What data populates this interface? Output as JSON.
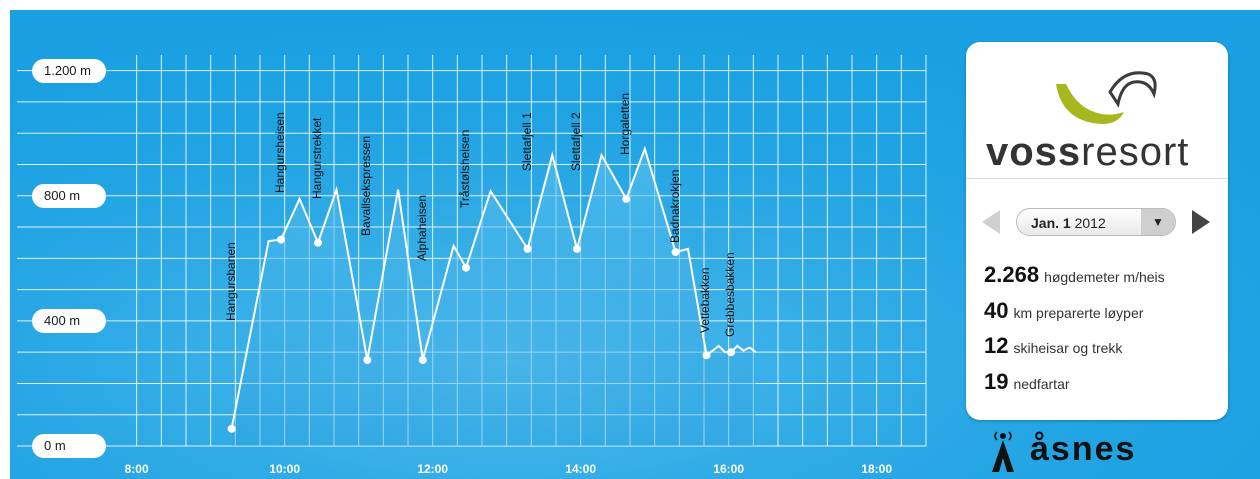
{
  "chart_data": {
    "type": "line",
    "title": "",
    "xlabel": "",
    "ylabel": "",
    "x_ticks": [
      "8:00",
      "10:00",
      "12:00",
      "14:00",
      "16:00",
      "18:00"
    ],
    "x_range": [
      "7:40",
      "18:40"
    ],
    "y_ticks": [
      "0 m",
      "400 m",
      "800 m",
      "1.200 m"
    ],
    "ylim": [
      0,
      1250
    ],
    "grid": true,
    "line_color": "#ffffff",
    "fill_color": "#4cb8ec",
    "profile": [
      {
        "t": "9:17",
        "elev": 55
      },
      {
        "t": "9:47",
        "elev": 655
      },
      {
        "t": "9:57",
        "elev": 660
      },
      {
        "t": "10:12",
        "elev": 790
      },
      {
        "t": "10:27",
        "elev": 650
      },
      {
        "t": "10:42",
        "elev": 820
      },
      {
        "t": "11:07",
        "elev": 275
      },
      {
        "t": "11:32",
        "elev": 820
      },
      {
        "t": "11:52",
        "elev": 275
      },
      {
        "t": "12:17",
        "elev": 640
      },
      {
        "t": "12:27",
        "elev": 570
      },
      {
        "t": "12:47",
        "elev": 815
      },
      {
        "t": "13:17",
        "elev": 630
      },
      {
        "t": "13:37",
        "elev": 930
      },
      {
        "t": "13:57",
        "elev": 630
      },
      {
        "t": "14:17",
        "elev": 930
      },
      {
        "t": "14:37",
        "elev": 790
      },
      {
        "t": "14:52",
        "elev": 950
      },
      {
        "t": "15:17",
        "elev": 620
      },
      {
        "t": "15:27",
        "elev": 630
      },
      {
        "t": "15:42",
        "elev": 290
      },
      {
        "t": "15:52",
        "elev": 320
      },
      {
        "t": "15:57",
        "elev": 300
      },
      {
        "t": "16:02",
        "elev": 300
      },
      {
        "t": "16:07",
        "elev": 320
      },
      {
        "t": "16:12",
        "elev": 305
      },
      {
        "t": "16:17",
        "elev": 315
      },
      {
        "t": "16:22",
        "elev": 300
      }
    ],
    "markers": [
      {
        "t": "9:17",
        "elev": 55
      },
      {
        "t": "9:57",
        "elev": 660
      },
      {
        "t": "10:27",
        "elev": 650
      },
      {
        "t": "11:07",
        "elev": 275
      },
      {
        "t": "11:52",
        "elev": 275
      },
      {
        "t": "12:27",
        "elev": 570
      },
      {
        "t": "13:17",
        "elev": 630
      },
      {
        "t": "13:57",
        "elev": 630
      },
      {
        "t": "14:37",
        "elev": 790
      },
      {
        "t": "15:17",
        "elev": 620
      },
      {
        "t": "15:42",
        "elev": 290
      },
      {
        "t": "16:02",
        "elev": 300
      }
    ],
    "lifts": [
      {
        "name": "Hangursbanen",
        "t": "9:17",
        "elev": 400
      },
      {
        "name": "Hangursheisen",
        "t": "9:57",
        "elev": 810
      },
      {
        "name": "Hangurstrekket",
        "t": "10:27",
        "elev": 790
      },
      {
        "name": "Bavallsekspressen",
        "t": "11:07",
        "elev": 670
      },
      {
        "name": "Alphaheisen",
        "t": "11:52",
        "elev": 590
      },
      {
        "name": "Tråstølsheisen",
        "t": "12:27",
        "elev": 760
      },
      {
        "name": "Slettafjell 1",
        "t": "13:17",
        "elev": 880
      },
      {
        "name": "Slettafjell 2",
        "t": "13:57",
        "elev": 880
      },
      {
        "name": "Horgaletten",
        "t": "14:37",
        "elev": 930
      },
      {
        "name": "Badnakrokjen",
        "t": "15:17",
        "elev": 650
      },
      {
        "name": "Vetlebakken",
        "t": "15:42",
        "elev": 360
      },
      {
        "name": "Grebbesbakken",
        "t": "16:02",
        "elev": 350
      }
    ]
  },
  "panel": {
    "brand_bold": "voss",
    "brand_light": "resort",
    "logo_colors": {
      "primary": "#a7b81f",
      "secondary": "#3c3c3c"
    },
    "date_day": "Jan. 1",
    "date_year": "2012",
    "prev_icon": "left-arrow-icon",
    "next_icon": "right-arrow-icon",
    "dropdown_icon": "chevron-down-icon",
    "stats": [
      {
        "num": "2.268",
        "label": "høgdemeter m/heis"
      },
      {
        "num": "40",
        "label": "km preparerte løyper"
      },
      {
        "num": "12",
        "label": "skiheisar og trekk"
      },
      {
        "num": "19",
        "label": "nedfartar"
      }
    ]
  },
  "sponsor": {
    "name": "åsnes",
    "icon": "antenna-icon"
  }
}
